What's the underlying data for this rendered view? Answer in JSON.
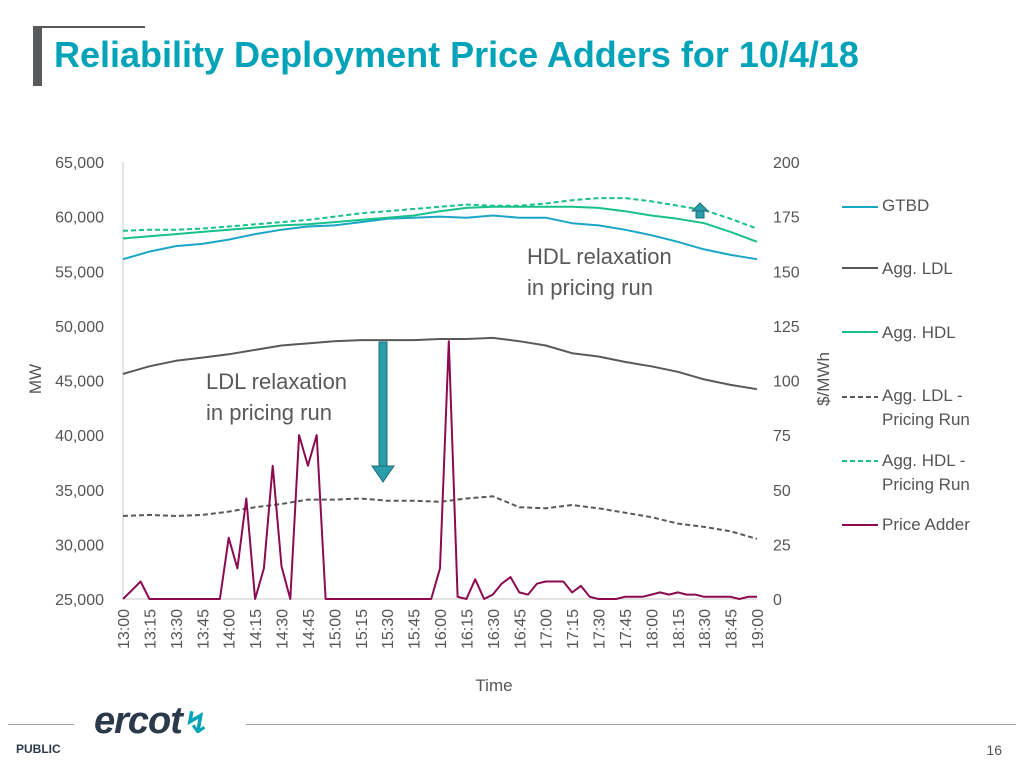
{
  "slide": {
    "title": "Reliability Deployment Price Adders for 10/4/18",
    "footer_label": "PUBLIC",
    "page_number": "16",
    "logo_text": "ercot"
  },
  "colors": {
    "title": "#00a3b8",
    "gtbd": "#1aa6c8",
    "agg_ldl": "#595959",
    "agg_hdl": "#17c18a",
    "agg_ldl_pricing": "#595959",
    "agg_hdl_pricing": "#17c18a",
    "price_adder": "#8b0a50",
    "arrow": "#2a9dab"
  },
  "chart_data": {
    "type": "line",
    "xlabel": "Time",
    "ylabel_left": "MW",
    "ylabel_right": "$/MWh",
    "y_left_range": [
      25000,
      65000
    ],
    "y_left_ticks": [
      "25,000",
      "30,000",
      "35,000",
      "40,000",
      "45,000",
      "50,000",
      "55,000",
      "60,000",
      "65,000"
    ],
    "y_right_range": [
      0,
      200
    ],
    "y_right_ticks": [
      "0",
      "25",
      "50",
      "75",
      "100",
      "125",
      "150",
      "175",
      "200"
    ],
    "categories": [
      "13:00",
      "13:15",
      "13:30",
      "13:45",
      "14:00",
      "14:15",
      "14:30",
      "14:45",
      "15:00",
      "15:15",
      "15:30",
      "15:45",
      "16:00",
      "16:15",
      "16:30",
      "16:45",
      "17:00",
      "17:15",
      "17:30",
      "17:45",
      "18:00",
      "18:15",
      "18:30",
      "18:45",
      "19:00"
    ],
    "series": [
      {
        "key": "gtbd",
        "name": "GTBD",
        "axis": "left",
        "style": "solid",
        "x": [
          13.0,
          13.25,
          13.5,
          13.75,
          14.0,
          14.25,
          14.5,
          14.75,
          15.0,
          15.25,
          15.5,
          15.75,
          16.0,
          16.25,
          16.5,
          16.75,
          17.0,
          17.25,
          17.5,
          17.75,
          18.0,
          18.25,
          18.5,
          18.75,
          19.0
        ],
        "y": [
          56100,
          56800,
          57300,
          57500,
          57900,
          58400,
          58800,
          59100,
          59200,
          59500,
          59800,
          59900,
          60000,
          59900,
          60100,
          59900,
          59900,
          59400,
          59200,
          58800,
          58300,
          57700,
          57000,
          56500,
          56100
        ]
      },
      {
        "key": "agg_ldl",
        "name": "Agg. LDL",
        "axis": "left",
        "style": "solid",
        "x": [
          13.0,
          13.25,
          13.5,
          13.75,
          14.0,
          14.25,
          14.5,
          14.75,
          15.0,
          15.25,
          15.5,
          15.75,
          16.0,
          16.25,
          16.5,
          16.75,
          17.0,
          17.25,
          17.5,
          17.75,
          18.0,
          18.25,
          18.5,
          18.75,
          19.0
        ],
        "y": [
          45600,
          46300,
          46800,
          47100,
          47400,
          47800,
          48200,
          48400,
          48600,
          48700,
          48700,
          48700,
          48800,
          48800,
          48900,
          48600,
          48200,
          47500,
          47200,
          46700,
          46300,
          45800,
          45100,
          44600,
          44200
        ]
      },
      {
        "key": "agg_hdl",
        "name": "Agg. HDL",
        "axis": "left",
        "style": "solid",
        "x": [
          13.0,
          13.25,
          13.5,
          13.75,
          14.0,
          14.25,
          14.5,
          14.75,
          15.0,
          15.25,
          15.5,
          15.75,
          16.0,
          16.25,
          16.5,
          16.75,
          17.0,
          17.25,
          17.5,
          17.75,
          18.0,
          18.25,
          18.5,
          18.75,
          19.0
        ],
        "y": [
          58000,
          58200,
          58400,
          58600,
          58800,
          59000,
          59200,
          59300,
          59500,
          59700,
          59900,
          60100,
          60500,
          60800,
          60900,
          60900,
          60900,
          60900,
          60800,
          60500,
          60100,
          59800,
          59400,
          58600,
          57700
        ]
      },
      {
        "key": "agg_ldl_pricing",
        "name": "Agg. LDL - Pricing Run",
        "axis": "left",
        "style": "dashed",
        "x": [
          13.0,
          13.25,
          13.5,
          13.75,
          14.0,
          14.25,
          14.5,
          14.75,
          15.0,
          15.25,
          15.5,
          15.75,
          16.0,
          16.25,
          16.5,
          16.75,
          17.0,
          17.25,
          17.5,
          17.75,
          18.0,
          18.25,
          18.5,
          18.75,
          19.0
        ],
        "y": [
          32600,
          32700,
          32600,
          32700,
          33000,
          33400,
          33700,
          34100,
          34100,
          34200,
          34000,
          34000,
          33900,
          34200,
          34400,
          33400,
          33300,
          33600,
          33300,
          32900,
          32500,
          31900,
          31600,
          31200,
          30500
        ]
      },
      {
        "key": "agg_hdl_pricing",
        "name": "Agg. HDL - Pricing Run",
        "axis": "left",
        "style": "dashed",
        "x": [
          13.0,
          13.25,
          13.5,
          13.75,
          14.0,
          14.25,
          14.5,
          14.75,
          15.0,
          15.25,
          15.5,
          15.75,
          16.0,
          16.25,
          16.5,
          16.75,
          17.0,
          17.25,
          17.5,
          17.75,
          18.0,
          18.25,
          18.5,
          18.75,
          19.0
        ],
        "y": [
          58700,
          58800,
          58800,
          58900,
          59100,
          59300,
          59500,
          59700,
          60000,
          60300,
          60500,
          60700,
          60900,
          61100,
          61000,
          61000,
          61200,
          61500,
          61700,
          61700,
          61400,
          61000,
          60600,
          59800,
          58900
        ]
      },
      {
        "key": "price_adder",
        "name": "Price Adder",
        "axis": "right",
        "style": "solid",
        "x": [
          13.0,
          13.083,
          13.167,
          13.25,
          13.5,
          13.75,
          13.917,
          14.0,
          14.083,
          14.167,
          14.25,
          14.333,
          14.417,
          14.5,
          14.583,
          14.667,
          14.75,
          14.833,
          14.917,
          15.0,
          15.25,
          15.5,
          15.75,
          15.917,
          16.0,
          16.083,
          16.167,
          16.25,
          16.333,
          16.417,
          16.5,
          16.583,
          16.667,
          16.75,
          16.833,
          16.917,
          17.0,
          17.083,
          17.167,
          17.25,
          17.333,
          17.417,
          17.5,
          17.583,
          17.667,
          17.75,
          17.833,
          17.917,
          18.0,
          18.083,
          18.167,
          18.25,
          18.333,
          18.417,
          18.5,
          18.583,
          18.667,
          18.75,
          18.833,
          18.917,
          19.0
        ],
        "y": [
          0,
          4,
          8,
          0,
          0,
          0,
          0,
          28,
          14,
          46,
          0,
          14,
          61,
          15,
          0,
          75,
          61,
          75,
          0,
          0,
          0,
          0,
          0,
          0,
          14,
          118,
          1,
          0,
          9,
          0,
          2,
          7,
          10,
          3,
          2,
          7,
          8,
          8,
          8,
          3,
          6,
          1,
          0,
          0,
          0,
          1,
          1,
          1,
          2,
          3,
          2,
          3,
          2,
          2,
          1,
          1,
          1,
          1,
          0,
          1,
          1
        ]
      }
    ]
  },
  "annotations": {
    "hdl_relaxation_line1": "HDL relaxation",
    "hdl_relaxation_line2": "in pricing run",
    "ldl_relaxation_line1": "LDL relaxation",
    "ldl_relaxation_line2": "in pricing run"
  },
  "legend": {
    "gtbd": "GTBD",
    "agg_ldl": "Agg. LDL",
    "agg_hdl": "Agg. HDL",
    "agg_ldl_pricing_line1": "Agg. LDL -",
    "agg_ldl_pricing_line2": "Pricing Run",
    "agg_hdl_pricing_line1": "Agg. HDL -",
    "agg_hdl_pricing_line2": "Pricing Run",
    "price_adder": "Price Adder"
  }
}
